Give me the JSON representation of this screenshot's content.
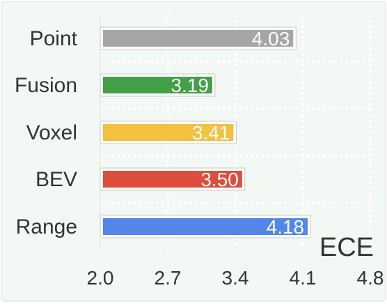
{
  "chart_data": {
    "type": "bar",
    "orientation": "horizontal",
    "categories": [
      "Point",
      "Fusion",
      "Voxel",
      "BEV",
      "Range"
    ],
    "values": [
      4.03,
      3.19,
      3.41,
      3.5,
      4.18
    ],
    "value_labels": [
      "4.03",
      "3.19",
      "3.41",
      "3.50",
      "4.18"
    ],
    "bar_colors": [
      "#a6a6a6",
      "#43a047",
      "#f4c03f",
      "#de4e3c",
      "#5286e8"
    ],
    "xlabel": "ECE",
    "xlim": [
      2.0,
      4.8
    ],
    "xticks": [
      2.0,
      2.7,
      3.4,
      4.1,
      4.8
    ],
    "xtick_labels": [
      "2.0",
      "2.7",
      "3.4",
      "4.1",
      "4.8"
    ],
    "grid": true,
    "grid_style": "dotted",
    "background_color": "#f2f8f3"
  }
}
